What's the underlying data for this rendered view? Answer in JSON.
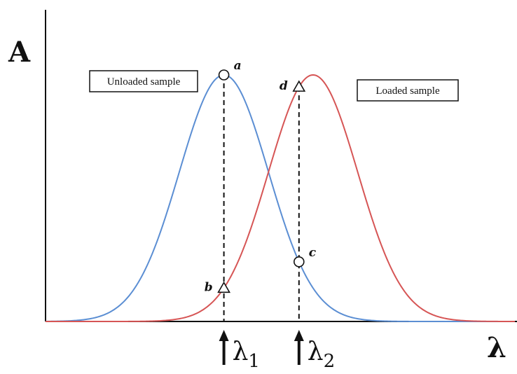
{
  "chart_data": {
    "type": "line",
    "ylabel": "A",
    "xlabel": "λ",
    "xlim": [
      0,
      100
    ],
    "ylim": [
      0,
      1
    ],
    "grid": false,
    "series": [
      {
        "name": "Unloaded sample",
        "color": "#5b8ed3",
        "mean": 38,
        "sd": 9.5,
        "peak": 1.0
      },
      {
        "name": "Loaded sample",
        "color": "#d65555",
        "mean": 57,
        "sd": 9.5,
        "peak": 1.0
      }
    ],
    "markers": [
      {
        "label": "a",
        "shape": "circle",
        "x": 38,
        "series": "Unloaded sample"
      },
      {
        "label": "b",
        "shape": "triangle",
        "x": 38,
        "series": "Loaded sample"
      },
      {
        "label": "c",
        "shape": "circle",
        "x": 54,
        "series": "Unloaded sample"
      },
      {
        "label": "d",
        "shape": "triangle",
        "x": 54,
        "series": "Loaded sample"
      }
    ],
    "wavelengths": [
      {
        "symbol": "λ",
        "subscript": "1",
        "x": 38
      },
      {
        "symbol": "λ",
        "subscript": "2",
        "x": 54
      }
    ],
    "legend": [
      {
        "text": "Unloaded sample",
        "placement": "top-left"
      },
      {
        "text": "Loaded sample",
        "placement": "top-right"
      }
    ]
  }
}
